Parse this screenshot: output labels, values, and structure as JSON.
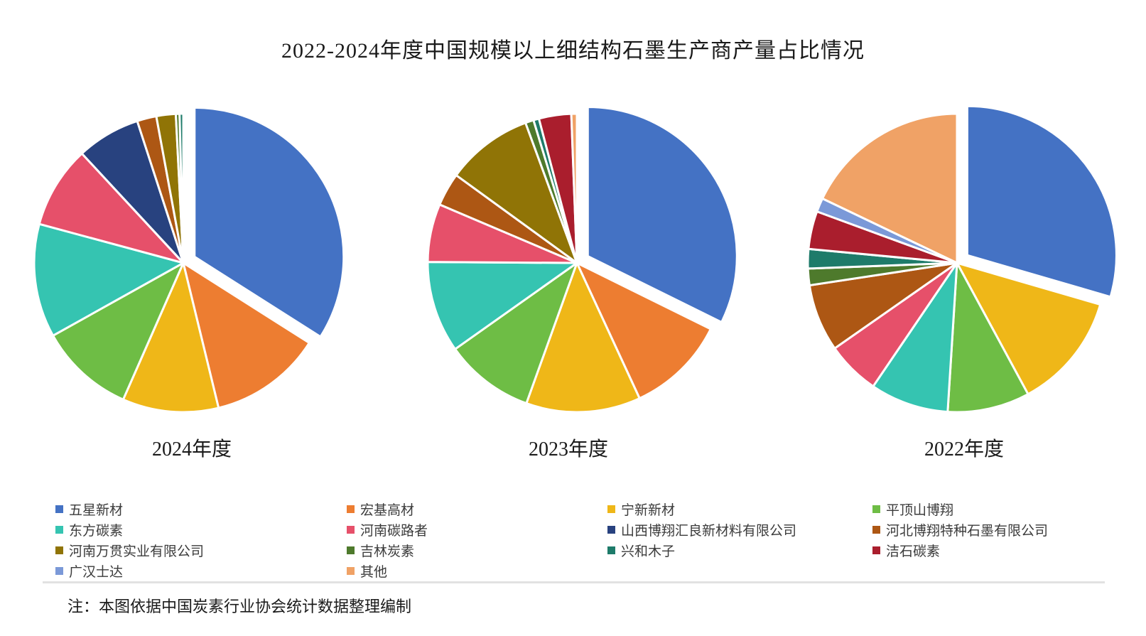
{
  "note": "注：本图依据中国炭素行业协会统计数据整理编制",
  "chart_data": {
    "type": "pie",
    "title": "2022-2024年度中国规模以上细结构石墨生产商产量占比情况",
    "unit": "%",
    "categories": [
      "五星新材",
      "宏基高材",
      "宁新新材",
      "平顶山博翔",
      "东方碳素",
      "河南碳路者",
      "山西博翔汇良新材料有限公司",
      "河北博翔特种石墨有限公司",
      "河南万贯实业有限公司",
      "吉林炭素",
      "兴和木子",
      "洁石碳素",
      "广汉士达",
      "其他"
    ],
    "colors": [
      "#4472C4",
      "#ED7D31",
      "#EFB718",
      "#6EBD45",
      "#35C4B1",
      "#E6506A",
      "#28427F",
      "#AD5714",
      "#907406",
      "#4E7A2C",
      "#1E7B6A",
      "#AA1E2D",
      "#7B99D8",
      "#F0A266"
    ],
    "pies": [
      {
        "label": "2024年度",
        "values": [
          34.0,
          12.2,
          10.4,
          10.3,
          12.3,
          8.9,
          6.9,
          2.1,
          2.1,
          0.4,
          0.4,
          0,
          0,
          0
        ]
      },
      {
        "label": "2023年度",
        "values": [
          32.3,
          10.8,
          12.4,
          9.7,
          9.9,
          6.3,
          0,
          3.6,
          9.4,
          0.9,
          0.6,
          3.5,
          0,
          0.6
        ]
      },
      {
        "label": "2022年度",
        "values": [
          29.5,
          0,
          12.6,
          8.9,
          8.5,
          5.8,
          0,
          7.3,
          0,
          1.8,
          2.1,
          4.1,
          1.5,
          17.9
        ]
      }
    ],
    "layout": {
      "start_angle_deg": 0,
      "clockwise": true,
      "exploded_slice_index": 0,
      "legend_position": "bottom",
      "grid": false
    }
  }
}
